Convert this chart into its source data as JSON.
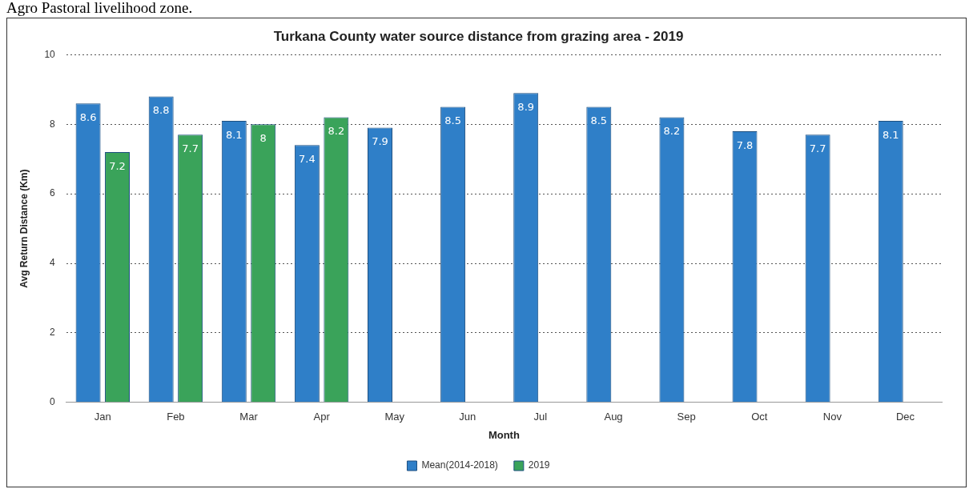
{
  "chart_data": {
    "type": "bar",
    "title": "Turkana County water source distance from grazing area - 2019",
    "xlabel": "Month",
    "ylabel": "Avg Return Distance (Km)",
    "annotations": [
      "Agro Pastoral livelihood zone."
    ],
    "categories": [
      "Jan",
      "Feb",
      "Mar",
      "Apr",
      "May",
      "Jun",
      "Jul",
      "Aug",
      "Sep",
      "Oct",
      "Nov",
      "Dec"
    ],
    "series": [
      {
        "name": "Mean(2014-2018)",
        "color": "#2f7fc8",
        "values": [
          8.6,
          8.8,
          8.1,
          7.4,
          7.9,
          8.5,
          8.9,
          8.5,
          8.2,
          7.8,
          7.7,
          8.1
        ]
      },
      {
        "name": "2019",
        "color": "#3aa35a",
        "values": [
          7.2,
          7.7,
          8,
          8.2,
          null,
          null,
          null,
          null,
          null,
          null,
          null,
          null
        ]
      }
    ],
    "ylim": [
      0,
      10
    ],
    "yticks": [
      0,
      2,
      4,
      6,
      8,
      10
    ],
    "grid": "y",
    "legend": "bottom",
    "data_labels": true
  }
}
